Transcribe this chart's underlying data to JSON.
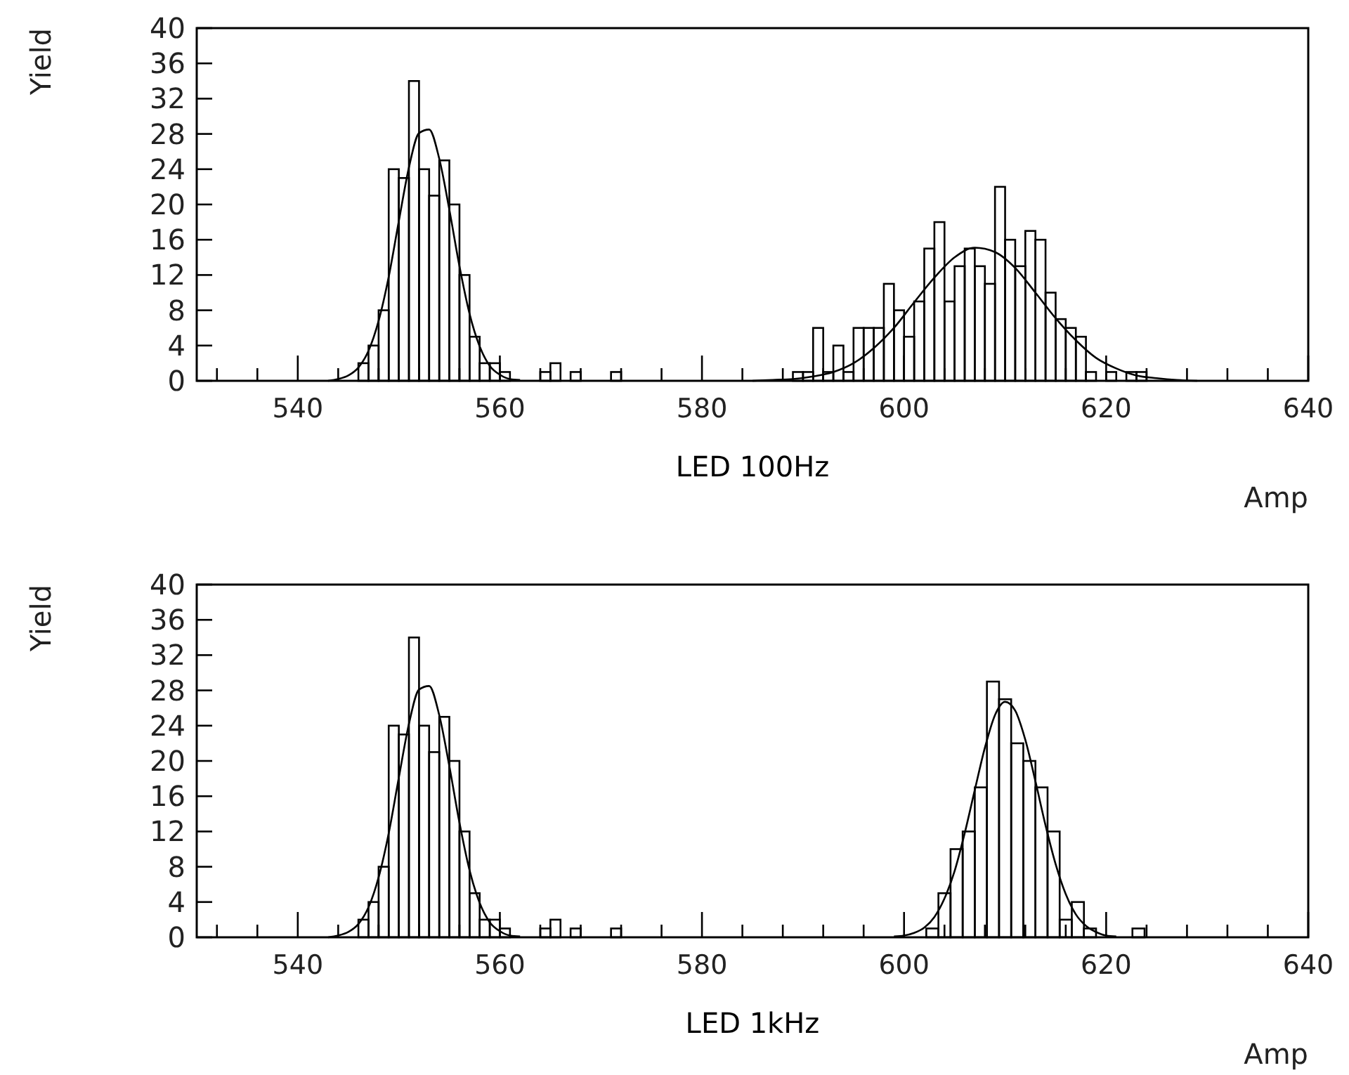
{
  "chart_data": [
    {
      "type": "histogram",
      "title": "LED 100Hz",
      "xlabel": "Amp",
      "ylabel": "Yield",
      "xlim": [
        530,
        640
      ],
      "ylim": [
        0,
        40
      ],
      "xticks": [
        {
          "value": 532,
          "label": null
        },
        {
          "value": 536,
          "label": null
        },
        540,
        {
          "value": 544,
          "label": null
        },
        {
          "value": 548,
          "label": null
        },
        {
          "value": 552,
          "label": null
        },
        {
          "value": 556,
          "label": null
        },
        560,
        {
          "value": 564,
          "label": null
        },
        {
          "value": 568,
          "label": null
        },
        {
          "value": 572,
          "label": null
        },
        {
          "value": 576,
          "label": null
        },
        580,
        {
          "value": 584,
          "label": null
        },
        {
          "value": 588,
          "label": null
        },
        {
          "value": 592,
          "label": null
        },
        {
          "value": 596,
          "label": null
        },
        600,
        {
          "value": 604,
          "label": null
        },
        {
          "value": 608,
          "label": null
        },
        {
          "value": 612,
          "label": null
        },
        {
          "value": 616,
          "label": null
        },
        620,
        {
          "value": 624,
          "label": null
        },
        {
          "value": 628,
          "label": null
        },
        {
          "value": 632,
          "label": null
        },
        {
          "value": 636,
          "label": null
        },
        640
      ],
      "yticks": [
        0,
        4,
        8,
        12,
        16,
        20,
        24,
        28,
        32,
        36,
        40
      ],
      "series": [
        {
          "type": "histogram",
          "color": "#000000",
          "bins": [
            546,
            547,
            548,
            549,
            550,
            551,
            552,
            553,
            554,
            555,
            556,
            557,
            558,
            559,
            560,
            561,
            562,
            563,
            564,
            565,
            566,
            567,
            568,
            569,
            570,
            571,
            572
          ],
          "values": [
            2,
            4,
            8,
            24,
            23,
            34,
            24,
            21,
            25,
            20,
            12,
            5,
            2,
            2,
            1,
            0,
            0,
            0,
            1,
            2,
            0,
            1,
            0,
            0,
            0,
            1
          ]
        },
        {
          "type": "histogram",
          "color": "#000000",
          "bins": [
            589,
            590,
            591,
            592,
            593,
            594,
            595,
            596,
            597,
            598,
            599,
            600,
            601,
            602,
            603,
            604,
            605,
            606,
            607,
            608,
            609,
            610,
            611,
            612,
            613,
            614,
            615,
            616,
            617,
            618,
            619,
            620,
            621,
            622,
            623,
            624
          ],
          "values": [
            1,
            1,
            6,
            1,
            4,
            1,
            6,
            6,
            6,
            11,
            8,
            5,
            9,
            15,
            18,
            9,
            13,
            15,
            13,
            11,
            22,
            16,
            13,
            17,
            16,
            10,
            7,
            6,
            5,
            1,
            0,
            1,
            0,
            1,
            1
          ]
        },
        {
          "type": "line",
          "color": "#000000",
          "x": [
            543,
            544,
            545,
            546,
            547,
            548,
            549,
            550,
            551,
            552,
            553,
            554,
            555,
            556,
            557,
            558,
            559,
            560,
            561,
            562
          ],
          "values": [
            0,
            0.2,
            0.6,
            1.5,
            3.4,
            6.8,
            11.8,
            18.1,
            24.2,
            28.1,
            28.5,
            25.2,
            19.4,
            13.0,
            7.6,
            3.9,
            1.7,
            0.7,
            0.2,
            0.1
          ]
        },
        {
          "type": "line",
          "color": "#000000",
          "x": [
            585,
            587,
            589,
            591,
            593,
            595,
            597,
            599,
            601,
            603,
            605,
            607,
            609,
            611,
            613,
            615,
            617,
            619,
            621,
            623,
            625,
            627,
            629
          ],
          "values": [
            0,
            0.1,
            0.2,
            0.5,
            1.0,
            2.0,
            3.7,
            6.0,
            8.9,
            11.7,
            14.0,
            15.1,
            14.6,
            12.8,
            10.0,
            7.1,
            4.6,
            2.6,
            1.4,
            0.6,
            0.3,
            0.1,
            0
          ]
        }
      ]
    },
    {
      "type": "histogram",
      "title": "LED 1kHz",
      "xlabel": "Amp",
      "ylabel": "Yield",
      "xlim": [
        530,
        640
      ],
      "ylim": [
        0,
        40
      ],
      "xticks": [
        {
          "value": 532,
          "label": null
        },
        {
          "value": 536,
          "label": null
        },
        540,
        {
          "value": 544,
          "label": null
        },
        {
          "value": 548,
          "label": null
        },
        {
          "value": 552,
          "label": null
        },
        {
          "value": 556,
          "label": null
        },
        560,
        {
          "value": 564,
          "label": null
        },
        {
          "value": 568,
          "label": null
        },
        {
          "value": 572,
          "label": null
        },
        {
          "value": 576,
          "label": null
        },
        580,
        {
          "value": 584,
          "label": null
        },
        {
          "value": 588,
          "label": null
        },
        {
          "value": 592,
          "label": null
        },
        {
          "value": 596,
          "label": null
        },
        600,
        {
          "value": 604,
          "label": null
        },
        {
          "value": 608,
          "label": null
        },
        {
          "value": 612,
          "label": null
        },
        {
          "value": 616,
          "label": null
        },
        620,
        {
          "value": 624,
          "label": null
        },
        {
          "value": 628,
          "label": null
        },
        {
          "value": 632,
          "label": null
        },
        {
          "value": 636,
          "label": null
        },
        640
      ],
      "yticks": [
        0,
        4,
        8,
        12,
        16,
        20,
        24,
        28,
        32,
        36,
        40
      ],
      "series": [
        {
          "type": "histogram",
          "color": "#000000",
          "bins": [
            546,
            547,
            548,
            549,
            550,
            551,
            552,
            553,
            554,
            555,
            556,
            557,
            558,
            559,
            560,
            561,
            562,
            563,
            564,
            565,
            566,
            567,
            568,
            569,
            570,
            571,
            572
          ],
          "values": [
            2,
            4,
            8,
            24,
            23,
            34,
            24,
            21,
            25,
            20,
            12,
            5,
            2,
            2,
            1,
            0,
            0,
            0,
            1,
            2,
            0,
            1,
            0,
            0,
            0,
            1
          ]
        },
        {
          "type": "histogram",
          "color": "#000000",
          "bins": [
            602.2,
            603.4,
            604.6,
            605.8,
            607.0,
            608.2,
            609.4,
            610.6,
            611.8,
            613.0,
            614.2,
            615.4,
            616.6,
            617.8,
            619.0,
            620.2,
            621.4,
            622.6,
            623.8
          ],
          "values": [
            1,
            5,
            10,
            12,
            17,
            29,
            27,
            22,
            20,
            17,
            12,
            2,
            4,
            1,
            0,
            0,
            0,
            1
          ]
        },
        {
          "type": "line",
          "color": "#000000",
          "x": [
            543,
            544,
            545,
            546,
            547,
            548,
            549,
            550,
            551,
            552,
            553,
            554,
            555,
            556,
            557,
            558,
            559,
            560,
            561,
            562
          ],
          "values": [
            0,
            0.2,
            0.6,
            1.5,
            3.4,
            6.8,
            11.8,
            18.1,
            24.2,
            28.1,
            28.5,
            25.2,
            19.4,
            13.0,
            7.6,
            3.9,
            1.7,
            0.7,
            0.2,
            0.1
          ]
        },
        {
          "type": "line",
          "color": "#000000",
          "x": [
            599,
            600,
            601,
            602,
            603,
            604,
            605,
            606,
            607,
            608,
            609,
            610,
            611,
            612,
            613,
            614,
            615,
            616,
            617,
            618,
            619,
            620,
            621
          ],
          "values": [
            0.1,
            0.2,
            0.5,
            1.1,
            2.3,
            4.4,
            7.5,
            11.8,
            16.7,
            21.5,
            25.2,
            26.7,
            25.7,
            22.4,
            17.7,
            12.7,
            8.3,
            4.9,
            2.6,
            1.3,
            0.6,
            0.2,
            0.1
          ]
        }
      ]
    }
  ]
}
